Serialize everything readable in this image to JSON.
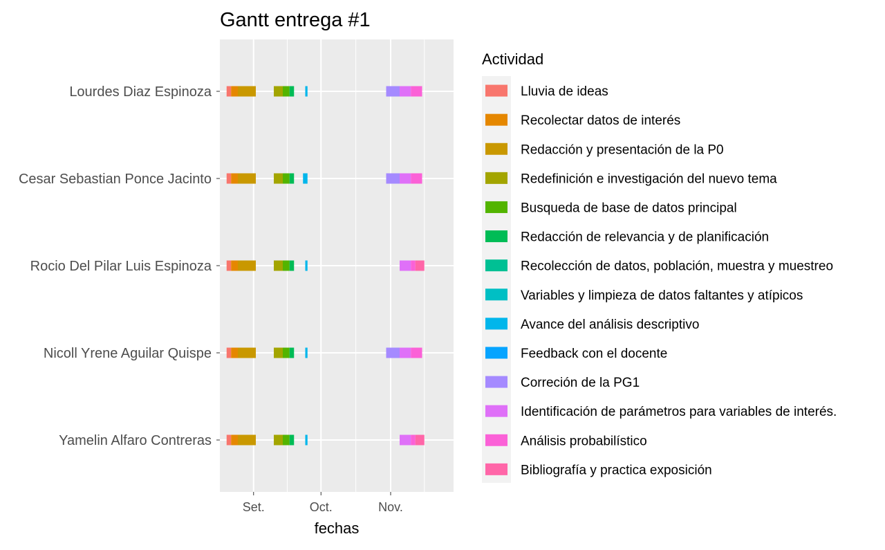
{
  "chart_data": {
    "type": "bar",
    "subtype": "gantt",
    "title": "Gantt entrega #1",
    "xlabel": "fechas",
    "ylabel": "",
    "legend_title": "Actividad",
    "legend_position": "right",
    "grid": true,
    "x_domain": [
      "2022-08-17",
      "2022-11-29"
    ],
    "x_ticks": [
      {
        "date": "2022-09-01",
        "label": "Set."
      },
      {
        "date": "2022-10-01",
        "label": "Oct."
      },
      {
        "date": "2022-11-01",
        "label": "Nov."
      }
    ],
    "activities": [
      {
        "name": "Lluvia de ideas",
        "color": "#F8766D"
      },
      {
        "name": "Recolectar datos de interés",
        "color": "#E58700"
      },
      {
        "name": "Redacción y presentación de la P0",
        "color": "#C99800"
      },
      {
        "name": "Redefinición e investigación del nuevo tema",
        "color": "#A3A500"
      },
      {
        "name": "Busqueda de base de datos principal",
        "color": "#53B400"
      },
      {
        "name": "Redacción de relevancia y de planificación",
        "color": "#00BC56"
      },
      {
        "name": "Recolección de datos, población, muestra y muestreo",
        "color": "#00C094"
      },
      {
        "name": "Variables y limpieza de datos faltantes y atípicos",
        "color": "#00BFC4"
      },
      {
        "name": "Avance del análisis descriptivo",
        "color": "#00B6EB"
      },
      {
        "name": "Feedback con el docente",
        "color": "#06A4FF"
      },
      {
        "name": "Correción de la PG1",
        "color": "#A58AFF"
      },
      {
        "name": "Identificación de parámetros para variables de interés.",
        "color": "#DF70F8"
      },
      {
        "name": "Análisis probabilístico",
        "color": "#FB61D7"
      },
      {
        "name": "Bibliografía y practica exposición",
        "color": "#FF66A8"
      }
    ],
    "people": [
      {
        "name": "Lourdes Diaz Espinoza",
        "tasks": [
          {
            "activity": 0,
            "start": "2022-08-20",
            "end": "2022-08-22"
          },
          {
            "activity": 1,
            "start": "2022-08-22",
            "end": "2022-08-25"
          },
          {
            "activity": 2,
            "start": "2022-08-25",
            "end": "2022-09-02"
          },
          {
            "activity": 3,
            "start": "2022-09-10",
            "end": "2022-09-14"
          },
          {
            "activity": 4,
            "start": "2022-09-14",
            "end": "2022-09-17"
          },
          {
            "activity": 5,
            "start": "2022-09-17",
            "end": "2022-09-19"
          },
          {
            "activity": 8,
            "start": "2022-09-24",
            "end": "2022-09-25"
          },
          {
            "activity": 10,
            "start": "2022-10-30",
            "end": "2022-11-05"
          },
          {
            "activity": 11,
            "start": "2022-11-05",
            "end": "2022-11-10"
          },
          {
            "activity": 12,
            "start": "2022-11-10",
            "end": "2022-11-15"
          }
        ]
      },
      {
        "name": "Cesar Sebastian Ponce Jacinto",
        "tasks": [
          {
            "activity": 0,
            "start": "2022-08-20",
            "end": "2022-08-22"
          },
          {
            "activity": 1,
            "start": "2022-08-22",
            "end": "2022-08-25"
          },
          {
            "activity": 2,
            "start": "2022-08-25",
            "end": "2022-09-02"
          },
          {
            "activity": 3,
            "start": "2022-09-10",
            "end": "2022-09-14"
          },
          {
            "activity": 4,
            "start": "2022-09-14",
            "end": "2022-09-17"
          },
          {
            "activity": 5,
            "start": "2022-09-17",
            "end": "2022-09-19"
          },
          {
            "activity": 8,
            "start": "2022-09-23",
            "end": "2022-09-25"
          },
          {
            "activity": 10,
            "start": "2022-10-30",
            "end": "2022-11-05"
          },
          {
            "activity": 11,
            "start": "2022-11-05",
            "end": "2022-11-10"
          },
          {
            "activity": 12,
            "start": "2022-11-10",
            "end": "2022-11-15"
          }
        ]
      },
      {
        "name": "Rocio Del Pilar Luis Espinoza",
        "tasks": [
          {
            "activity": 0,
            "start": "2022-08-20",
            "end": "2022-08-22"
          },
          {
            "activity": 1,
            "start": "2022-08-22",
            "end": "2022-08-25"
          },
          {
            "activity": 2,
            "start": "2022-08-25",
            "end": "2022-09-02"
          },
          {
            "activity": 3,
            "start": "2022-09-10",
            "end": "2022-09-14"
          },
          {
            "activity": 4,
            "start": "2022-09-14",
            "end": "2022-09-17"
          },
          {
            "activity": 5,
            "start": "2022-09-17",
            "end": "2022-09-19"
          },
          {
            "activity": 8,
            "start": "2022-09-24",
            "end": "2022-09-25"
          },
          {
            "activity": 11,
            "start": "2022-11-05",
            "end": "2022-11-10"
          },
          {
            "activity": 12,
            "start": "2022-11-10",
            "end": "2022-11-12"
          },
          {
            "activity": 13,
            "start": "2022-11-12",
            "end": "2022-11-16"
          }
        ]
      },
      {
        "name": "Nicoll Yrene Aguilar Quispe",
        "tasks": [
          {
            "activity": 0,
            "start": "2022-08-20",
            "end": "2022-08-22"
          },
          {
            "activity": 1,
            "start": "2022-08-22",
            "end": "2022-08-25"
          },
          {
            "activity": 2,
            "start": "2022-08-25",
            "end": "2022-09-02"
          },
          {
            "activity": 3,
            "start": "2022-09-10",
            "end": "2022-09-14"
          },
          {
            "activity": 4,
            "start": "2022-09-14",
            "end": "2022-09-17"
          },
          {
            "activity": 5,
            "start": "2022-09-17",
            "end": "2022-09-19"
          },
          {
            "activity": 8,
            "start": "2022-09-24",
            "end": "2022-09-25"
          },
          {
            "activity": 10,
            "start": "2022-10-30",
            "end": "2022-11-05"
          },
          {
            "activity": 11,
            "start": "2022-11-05",
            "end": "2022-11-10"
          },
          {
            "activity": 12,
            "start": "2022-11-10",
            "end": "2022-11-15"
          }
        ]
      },
      {
        "name": "Yamelin Alfaro Contreras",
        "tasks": [
          {
            "activity": 0,
            "start": "2022-08-20",
            "end": "2022-08-22"
          },
          {
            "activity": 1,
            "start": "2022-08-22",
            "end": "2022-08-25"
          },
          {
            "activity": 2,
            "start": "2022-08-25",
            "end": "2022-09-02"
          },
          {
            "activity": 3,
            "start": "2022-09-10",
            "end": "2022-09-14"
          },
          {
            "activity": 4,
            "start": "2022-09-14",
            "end": "2022-09-17"
          },
          {
            "activity": 5,
            "start": "2022-09-17",
            "end": "2022-09-19"
          },
          {
            "activity": 8,
            "start": "2022-09-24",
            "end": "2022-09-25"
          },
          {
            "activity": 11,
            "start": "2022-11-05",
            "end": "2022-11-10"
          },
          {
            "activity": 12,
            "start": "2022-11-10",
            "end": "2022-11-12"
          },
          {
            "activity": 13,
            "start": "2022-11-12",
            "end": "2022-11-16"
          }
        ]
      }
    ]
  }
}
